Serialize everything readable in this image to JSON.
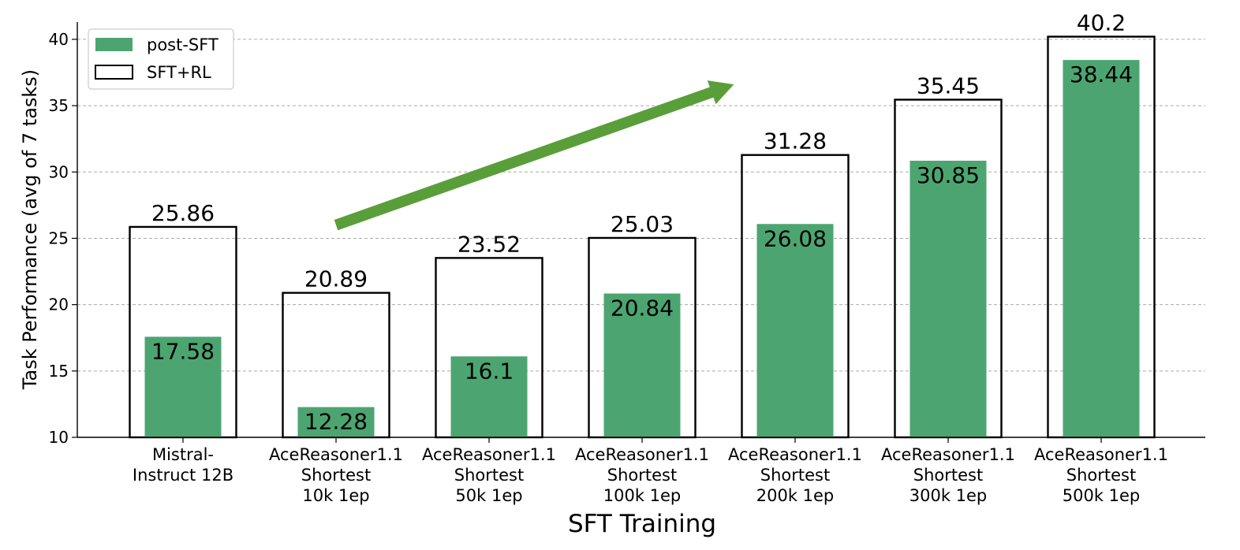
{
  "chart_data": {
    "type": "bar",
    "xlabel": "SFT Training",
    "ylabel": "Task Performance (avg of 7 tasks)",
    "ylim": [
      10,
      41.3
    ],
    "yticks": [
      10,
      15,
      20,
      25,
      30,
      35,
      40
    ],
    "grid": "horizontal dashed",
    "legend_position": "top-left",
    "categories": [
      [
        "Mistral-",
        "Instruct 12B"
      ],
      [
        "AceReasoner1.1",
        "Shortest",
        "10k 1ep"
      ],
      [
        "AceReasoner1.1",
        "Shortest",
        "50k 1ep"
      ],
      [
        "AceReasoner1.1",
        "Shortest",
        "100k 1ep"
      ],
      [
        "AceReasoner1.1",
        "Shortest",
        "200k 1ep"
      ],
      [
        "AceReasoner1.1",
        "Shortest",
        "300k 1ep"
      ],
      [
        "AceReasoner1.1",
        "Shortest",
        "500k 1ep"
      ]
    ],
    "series": [
      {
        "name": "post-SFT",
        "style": "filled",
        "color": "#4ca571",
        "values": [
          17.58,
          12.28,
          16.1,
          20.84,
          26.08,
          30.85,
          38.44
        ],
        "labels": [
          "17.58",
          "12.28",
          "16.1",
          "20.84",
          "26.08",
          "30.85",
          "38.44"
        ]
      },
      {
        "name": "SFT+RL",
        "style": "outline",
        "color": "#000000",
        "values": [
          25.86,
          20.89,
          23.52,
          25.03,
          31.28,
          35.45,
          40.2
        ],
        "labels": [
          "25.86",
          "20.89",
          "23.52",
          "25.03",
          "31.28",
          "35.45",
          "40.2"
        ]
      }
    ],
    "annotations": [
      {
        "type": "arrow",
        "color": "#5a9e3a",
        "from": [
          1.0,
          26.0
        ],
        "to": [
          3.6,
          36.6
        ]
      }
    ]
  }
}
